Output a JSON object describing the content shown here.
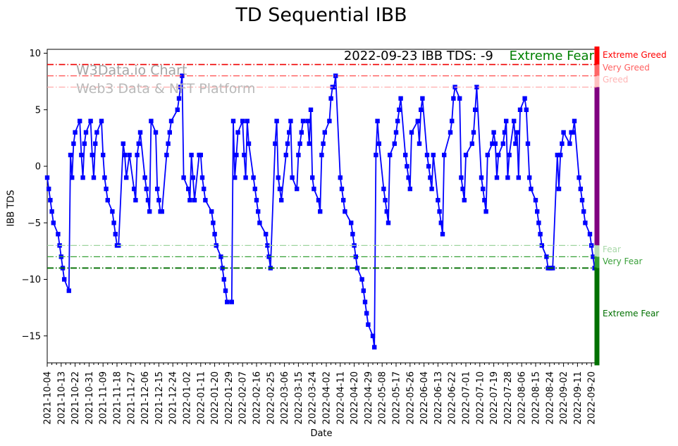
{
  "window": {
    "title": "TD Sequential IBB"
  },
  "watermarks": {
    "line1": "W3Data.io Chart",
    "line2": "Web3 Data & NFT Platform"
  },
  "annotation": {
    "text": "2022-09-23 IBB TDS: -9",
    "sentiment": "Extreme Fear",
    "sentiment_color": "#008000"
  },
  "chart_data": {
    "type": "line",
    "title": "TD Sequential IBB",
    "xlabel": "Date",
    "ylabel": "IBB TDS",
    "ylim": [
      -17.4,
      10.4
    ],
    "grid": false,
    "legend": null,
    "yticks": [
      {
        "value": 10,
        "label": "10"
      },
      {
        "value": 5,
        "label": "5"
      },
      {
        "value": 0,
        "label": "0"
      },
      {
        "value": -5,
        "label": "−5"
      },
      {
        "value": -10,
        "label": "−10"
      },
      {
        "value": -15,
        "label": "−15"
      }
    ],
    "xticks": [
      "2021-10-04",
      "2021-10-13",
      "2021-10-22",
      "2021-10-31",
      "2021-11-09",
      "2021-11-18",
      "2021-11-27",
      "2021-12-06",
      "2021-12-15",
      "2021-12-24",
      "2022-01-02",
      "2022-01-11",
      "2022-01-20",
      "2022-01-29",
      "2022-02-07",
      "2022-02-16",
      "2022-02-25",
      "2022-03-06",
      "2022-03-15",
      "2022-03-24",
      "2022-04-02",
      "2022-04-11",
      "2022-04-20",
      "2022-04-29",
      "2022-05-08",
      "2022-05-17",
      "2022-05-26",
      "2022-06-04",
      "2022-06-13",
      "2022-06-22",
      "2022-07-01",
      "2022-07-10",
      "2022-07-19",
      "2022-07-28",
      "2022-08-06",
      "2022-08-15",
      "2022-08-24",
      "2022-09-02",
      "2022-09-11",
      "2022-09-20"
    ],
    "thresholds": [
      {
        "label": "Extreme Greed",
        "value": 9,
        "line_color": "#f00000",
        "label_color": "#ff0000",
        "line_width": 1.6
      },
      {
        "label": "Very Greed",
        "value": 8,
        "line_color": "#ff4f4f",
        "label_color": "#ff5f5f",
        "line_width": 1.3
      },
      {
        "label": "Greed",
        "value": 7,
        "line_color": "#ffaaaa",
        "label_color": "#ffb5b5",
        "line_width": 1.3
      },
      {
        "label": "Fear",
        "value": -7,
        "line_color": "#9ed49e",
        "label_color": "#a8d8a8",
        "line_width": 1.3
      },
      {
        "label": "Very Fear",
        "value": -8,
        "line_color": "#37a037",
        "label_color": "#3aa03a",
        "line_width": 1.3
      },
      {
        "label": "Extreme Fear",
        "value": -9,
        "line_color": "#006e00",
        "label_color": "#007000",
        "line_width": 1.8
      }
    ],
    "sentiment_bar": {
      "segments": [
        {
          "from": 10.6,
          "to": 9,
          "color": "#ff0000",
          "name": "extreme-greed"
        },
        {
          "from": 9,
          "to": 8,
          "color": "#ff6666",
          "name": "very-greed"
        },
        {
          "from": 8,
          "to": 7,
          "color": "#ffc0c0",
          "name": "greed"
        },
        {
          "from": 7,
          "to": -7,
          "color": "#800080",
          "name": "neutral"
        },
        {
          "from": -7,
          "to": -8,
          "color": "#b7dcb7",
          "name": "fear"
        },
        {
          "from": -8,
          "to": -9,
          "color": "#2f9e2f",
          "name": "very-fear"
        },
        {
          "from": -9,
          "to": -17.6,
          "color": "#007000",
          "name": "extreme-fear"
        }
      ]
    },
    "series": [
      {
        "name": "IBB TDS",
        "color": "#0000ff",
        "marker": "square",
        "points": [
          [
            "2021-10-04",
            -1
          ],
          [
            "2021-10-05",
            -2
          ],
          [
            "2021-10-06",
            -3
          ],
          [
            "2021-10-07",
            -4
          ],
          [
            "2021-10-08",
            -5
          ],
          [
            "2021-10-11",
            -6
          ],
          [
            "2021-10-12",
            -7
          ],
          [
            "2021-10-13",
            -8
          ],
          [
            "2021-10-14",
            -9
          ],
          [
            "2021-10-15",
            -10
          ],
          [
            "2021-10-18",
            -11
          ],
          [
            "2021-10-19",
            1
          ],
          [
            "2021-10-20",
            -1
          ],
          [
            "2021-10-21",
            2
          ],
          [
            "2021-10-22",
            3
          ],
          [
            "2021-10-25",
            4
          ],
          [
            "2021-10-26",
            1
          ],
          [
            "2021-10-27",
            -1
          ],
          [
            "2021-10-28",
            2
          ],
          [
            "2021-10-29",
            3
          ],
          [
            "2021-11-01",
            4
          ],
          [
            "2021-11-02",
            1
          ],
          [
            "2021-11-03",
            -1
          ],
          [
            "2021-11-04",
            2
          ],
          [
            "2021-11-05",
            3
          ],
          [
            "2021-11-08",
            4
          ],
          [
            "2021-11-09",
            1
          ],
          [
            "2021-11-10",
            -1
          ],
          [
            "2021-11-11",
            -2
          ],
          [
            "2021-11-12",
            -3
          ],
          [
            "2021-11-15",
            -4
          ],
          [
            "2021-11-16",
            -5
          ],
          [
            "2021-11-17",
            -6
          ],
          [
            "2021-11-18",
            -7
          ],
          [
            "2021-11-19",
            -7
          ],
          [
            "2021-11-22",
            2
          ],
          [
            "2021-11-23",
            1
          ],
          [
            "2021-11-24",
            -1
          ],
          [
            "2021-11-26",
            1
          ],
          [
            "2021-11-29",
            -2
          ],
          [
            "2021-11-30",
            -3
          ],
          [
            "2021-12-01",
            1
          ],
          [
            "2021-12-02",
            2
          ],
          [
            "2021-12-03",
            3
          ],
          [
            "2021-12-06",
            -1
          ],
          [
            "2021-12-07",
            -2
          ],
          [
            "2021-12-08",
            -3
          ],
          [
            "2021-12-09",
            -4
          ],
          [
            "2021-12-10",
            4
          ],
          [
            "2021-12-13",
            3
          ],
          [
            "2021-12-14",
            -2
          ],
          [
            "2021-12-15",
            -3
          ],
          [
            "2021-12-16",
            -4
          ],
          [
            "2021-12-17",
            -4
          ],
          [
            "2021-12-20",
            1
          ],
          [
            "2021-12-21",
            2
          ],
          [
            "2021-12-22",
            3
          ],
          [
            "2021-12-23",
            4
          ],
          [
            "2021-12-27",
            5
          ],
          [
            "2021-12-28",
            6
          ],
          [
            "2021-12-29",
            7
          ],
          [
            "2021-12-30",
            8
          ],
          [
            "2021-12-31",
            -1
          ],
          [
            "2022-01-03",
            -2
          ],
          [
            "2022-01-04",
            -3
          ],
          [
            "2022-01-05",
            1
          ],
          [
            "2022-01-06",
            -1
          ],
          [
            "2022-01-07",
            -3
          ],
          [
            "2022-01-10",
            1
          ],
          [
            "2022-01-11",
            1
          ],
          [
            "2022-01-12",
            -1
          ],
          [
            "2022-01-13",
            -2
          ],
          [
            "2022-01-14",
            -3
          ],
          [
            "2022-01-18",
            -4
          ],
          [
            "2022-01-19",
            -5
          ],
          [
            "2022-01-20",
            -6
          ],
          [
            "2022-01-21",
            -7
          ],
          [
            "2022-01-24",
            -8
          ],
          [
            "2022-01-25",
            -9
          ],
          [
            "2022-01-26",
            -10
          ],
          [
            "2022-01-27",
            -11
          ],
          [
            "2022-01-28",
            -12
          ],
          [
            "2022-01-31",
            -12
          ],
          [
            "2022-02-01",
            4
          ],
          [
            "2022-02-02",
            -1
          ],
          [
            "2022-02-03",
            1
          ],
          [
            "2022-02-04",
            3
          ],
          [
            "2022-02-07",
            4
          ],
          [
            "2022-02-08",
            1
          ],
          [
            "2022-02-09",
            -1
          ],
          [
            "2022-02-10",
            4
          ],
          [
            "2022-02-11",
            2
          ],
          [
            "2022-02-14",
            -1
          ],
          [
            "2022-02-15",
            -2
          ],
          [
            "2022-02-16",
            -3
          ],
          [
            "2022-02-17",
            -4
          ],
          [
            "2022-02-18",
            -5
          ],
          [
            "2022-02-22",
            -6
          ],
          [
            "2022-02-23",
            -7
          ],
          [
            "2022-02-24",
            -8
          ],
          [
            "2022-02-25",
            -9
          ],
          [
            "2022-02-28",
            2
          ],
          [
            "2022-03-01",
            4
          ],
          [
            "2022-03-02",
            -1
          ],
          [
            "2022-03-03",
            -2
          ],
          [
            "2022-03-04",
            -3
          ],
          [
            "2022-03-07",
            1
          ],
          [
            "2022-03-08",
            2
          ],
          [
            "2022-03-09",
            3
          ],
          [
            "2022-03-10",
            4
          ],
          [
            "2022-03-11",
            -1
          ],
          [
            "2022-03-14",
            -2
          ],
          [
            "2022-03-15",
            1
          ],
          [
            "2022-03-16",
            2
          ],
          [
            "2022-03-17",
            3
          ],
          [
            "2022-03-18",
            4
          ],
          [
            "2022-03-21",
            4
          ],
          [
            "2022-03-22",
            2
          ],
          [
            "2022-03-23",
            5
          ],
          [
            "2022-03-24",
            -1
          ],
          [
            "2022-03-25",
            -2
          ],
          [
            "2022-03-28",
            -3
          ],
          [
            "2022-03-29",
            -4
          ],
          [
            "2022-03-30",
            1
          ],
          [
            "2022-03-31",
            2
          ],
          [
            "2022-04-01",
            3
          ],
          [
            "2022-04-04",
            4
          ],
          [
            "2022-04-05",
            6
          ],
          [
            "2022-04-06",
            7
          ],
          [
            "2022-04-07",
            7
          ],
          [
            "2022-04-08",
            8
          ],
          [
            "2022-04-11",
            -1
          ],
          [
            "2022-04-12",
            -2
          ],
          [
            "2022-04-13",
            -3
          ],
          [
            "2022-04-14",
            -4
          ],
          [
            "2022-04-18",
            -5
          ],
          [
            "2022-04-19",
            -6
          ],
          [
            "2022-04-20",
            -7
          ],
          [
            "2022-04-21",
            -8
          ],
          [
            "2022-04-22",
            -9
          ],
          [
            "2022-04-25",
            -10
          ],
          [
            "2022-04-26",
            -11
          ],
          [
            "2022-04-27",
            -12
          ],
          [
            "2022-04-28",
            -13
          ],
          [
            "2022-04-29",
            -14
          ],
          [
            "2022-05-02",
            -15
          ],
          [
            "2022-05-03",
            -16
          ],
          [
            "2022-05-04",
            1
          ],
          [
            "2022-05-05",
            4
          ],
          [
            "2022-05-06",
            2
          ],
          [
            "2022-05-09",
            -2
          ],
          [
            "2022-05-10",
            -3
          ],
          [
            "2022-05-11",
            -4
          ],
          [
            "2022-05-12",
            -5
          ],
          [
            "2022-05-13",
            1
          ],
          [
            "2022-05-16",
            2
          ],
          [
            "2022-05-17",
            3
          ],
          [
            "2022-05-18",
            4
          ],
          [
            "2022-05-19",
            5
          ],
          [
            "2022-05-20",
            6
          ],
          [
            "2022-05-23",
            1
          ],
          [
            "2022-05-24",
            0
          ],
          [
            "2022-05-25",
            -1
          ],
          [
            "2022-05-26",
            -2
          ],
          [
            "2022-05-27",
            3
          ],
          [
            "2022-05-31",
            4
          ],
          [
            "2022-06-01",
            2
          ],
          [
            "2022-06-02",
            5
          ],
          [
            "2022-06-03",
            6
          ],
          [
            "2022-06-06",
            1
          ],
          [
            "2022-06-07",
            0
          ],
          [
            "2022-06-08",
            -1
          ],
          [
            "2022-06-09",
            -2
          ],
          [
            "2022-06-10",
            1
          ],
          [
            "2022-06-13",
            -3
          ],
          [
            "2022-06-14",
            -4
          ],
          [
            "2022-06-15",
            -5
          ],
          [
            "2022-06-16",
            -6
          ],
          [
            "2022-06-17",
            1
          ],
          [
            "2022-06-21",
            3
          ],
          [
            "2022-06-22",
            4
          ],
          [
            "2022-06-23",
            6
          ],
          [
            "2022-06-24",
            7
          ],
          [
            "2022-06-27",
            6
          ],
          [
            "2022-06-28",
            -1
          ],
          [
            "2022-06-29",
            -2
          ],
          [
            "2022-06-30",
            -3
          ],
          [
            "2022-07-01",
            1
          ],
          [
            "2022-07-05",
            2
          ],
          [
            "2022-07-06",
            3
          ],
          [
            "2022-07-07",
            5
          ],
          [
            "2022-07-08",
            7
          ],
          [
            "2022-07-11",
            -1
          ],
          [
            "2022-07-12",
            -2
          ],
          [
            "2022-07-13",
            -3
          ],
          [
            "2022-07-14",
            -4
          ],
          [
            "2022-07-15",
            1
          ],
          [
            "2022-07-18",
            2
          ],
          [
            "2022-07-19",
            3
          ],
          [
            "2022-07-20",
            2
          ],
          [
            "2022-07-21",
            -1
          ],
          [
            "2022-07-22",
            1
          ],
          [
            "2022-07-25",
            2
          ],
          [
            "2022-07-26",
            3
          ],
          [
            "2022-07-27",
            4
          ],
          [
            "2022-07-28",
            -1
          ],
          [
            "2022-07-29",
            1
          ],
          [
            "2022-08-01",
            4
          ],
          [
            "2022-08-02",
            2
          ],
          [
            "2022-08-03",
            3
          ],
          [
            "2022-08-04",
            -1
          ],
          [
            "2022-08-05",
            5
          ],
          [
            "2022-08-08",
            6
          ],
          [
            "2022-08-09",
            5
          ],
          [
            "2022-08-10",
            2
          ],
          [
            "2022-08-11",
            -1
          ],
          [
            "2022-08-12",
            -2
          ],
          [
            "2022-08-15",
            -3
          ],
          [
            "2022-08-16",
            -4
          ],
          [
            "2022-08-17",
            -5
          ],
          [
            "2022-08-18",
            -6
          ],
          [
            "2022-08-19",
            -7
          ],
          [
            "2022-08-22",
            -8
          ],
          [
            "2022-08-23",
            -9
          ],
          [
            "2022-08-24",
            -9
          ],
          [
            "2022-08-25",
            -9
          ],
          [
            "2022-08-26",
            -9
          ],
          [
            "2022-08-29",
            1
          ],
          [
            "2022-08-30",
            -2
          ],
          [
            "2022-08-31",
            1
          ],
          [
            "2022-09-01",
            2
          ],
          [
            "2022-09-02",
            3
          ],
          [
            "2022-09-06",
            2
          ],
          [
            "2022-09-07",
            3
          ],
          [
            "2022-09-08",
            3
          ],
          [
            "2022-09-09",
            4
          ],
          [
            "2022-09-12",
            -1
          ],
          [
            "2022-09-13",
            -2
          ],
          [
            "2022-09-14",
            -3
          ],
          [
            "2022-09-15",
            -4
          ],
          [
            "2022-09-16",
            -5
          ],
          [
            "2022-09-19",
            -6
          ],
          [
            "2022-09-20",
            -7
          ],
          [
            "2022-09-21",
            -8
          ],
          [
            "2022-09-22",
            -9
          ],
          [
            "2022-09-23",
            -9
          ]
        ]
      }
    ]
  }
}
